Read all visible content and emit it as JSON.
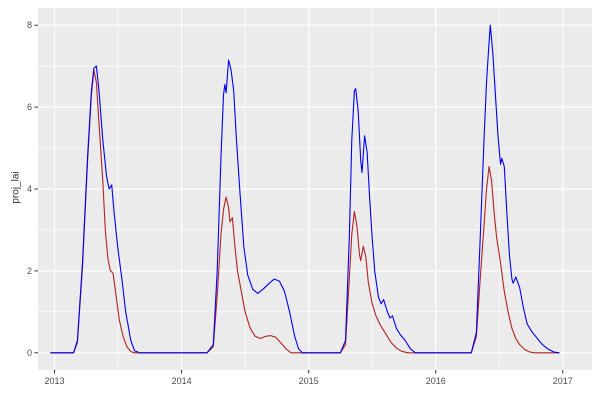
{
  "style": {
    "figure_background": "#FFFFFF",
    "panel_background": "#EBEBEB",
    "grid_color": "#FFFFFF",
    "tick_mark_color": "#333333",
    "tick_label_color": "#4D4D4D"
  },
  "chart_data": {
    "type": "line",
    "title": "",
    "xlabel": "",
    "ylabel": "proj_lai",
    "grid": true,
    "legend": "none",
    "x_ticks": [
      2013,
      2014,
      2015,
      2016,
      2017
    ],
    "x_tick_labels": [
      "2013",
      "2014",
      "2015",
      "2016",
      "2017"
    ],
    "x_minor_ticks": [
      2013.5,
      2014.5,
      2015.5,
      2016.5
    ],
    "y_ticks": [
      0,
      2,
      4,
      6,
      8
    ],
    "y_tick_labels": [
      "0",
      "2",
      "4",
      "6",
      "8"
    ],
    "y_minor_ticks": [
      1,
      3,
      5,
      7
    ],
    "xlim_render": [
      2012.87,
      2017.23
    ],
    "ylim_render": [
      -0.42,
      8.42
    ],
    "ylim": [
      0,
      8
    ],
    "series": [
      {
        "name": "red-line",
        "color": "#B22222",
        "points": [
          [
            2012.97,
            0
          ],
          [
            2013.15,
            0
          ],
          [
            2013.18,
            0.25
          ],
          [
            2013.22,
            2.1
          ],
          [
            2013.26,
            4.7
          ],
          [
            2013.29,
            6.3
          ],
          [
            2013.31,
            6.9
          ],
          [
            2013.33,
            6.6
          ],
          [
            2013.35,
            5.6
          ],
          [
            2013.38,
            4.2
          ],
          [
            2013.4,
            3.0
          ],
          [
            2013.42,
            2.3
          ],
          [
            2013.44,
            2.0
          ],
          [
            2013.46,
            1.95
          ],
          [
            2013.48,
            1.5
          ],
          [
            2013.51,
            0.8
          ],
          [
            2013.54,
            0.4
          ],
          [
            2013.57,
            0.15
          ],
          [
            2013.6,
            0.03
          ],
          [
            2013.63,
            0
          ],
          [
            2014.2,
            0
          ],
          [
            2014.25,
            0.15
          ],
          [
            2014.28,
            1.4
          ],
          [
            2014.31,
            2.9
          ],
          [
            2014.33,
            3.5
          ],
          [
            2014.35,
            3.8
          ],
          [
            2014.37,
            3.55
          ],
          [
            2014.38,
            3.2
          ],
          [
            2014.4,
            3.3
          ],
          [
            2014.42,
            2.6
          ],
          [
            2014.44,
            2.0
          ],
          [
            2014.47,
            1.5
          ],
          [
            2014.5,
            1.0
          ],
          [
            2014.54,
            0.6
          ],
          [
            2014.58,
            0.4
          ],
          [
            2014.62,
            0.35
          ],
          [
            2014.66,
            0.4
          ],
          [
            2014.7,
            0.42
          ],
          [
            2014.74,
            0.38
          ],
          [
            2014.78,
            0.25
          ],
          [
            2014.82,
            0.1
          ],
          [
            2014.86,
            0
          ],
          [
            2015.25,
            0
          ],
          [
            2015.29,
            0.2
          ],
          [
            2015.32,
            1.8
          ],
          [
            2015.34,
            2.9
          ],
          [
            2015.36,
            3.45
          ],
          [
            2015.38,
            3.1
          ],
          [
            2015.4,
            2.4
          ],
          [
            2015.41,
            2.25
          ],
          [
            2015.43,
            2.6
          ],
          [
            2015.45,
            2.35
          ],
          [
            2015.47,
            1.7
          ],
          [
            2015.5,
            1.2
          ],
          [
            2015.53,
            0.9
          ],
          [
            2015.56,
            0.7
          ],
          [
            2015.59,
            0.55
          ],
          [
            2015.62,
            0.4
          ],
          [
            2015.65,
            0.25
          ],
          [
            2015.69,
            0.12
          ],
          [
            2015.73,
            0.04
          ],
          [
            2015.78,
            0
          ],
          [
            2016.28,
            0
          ],
          [
            2016.32,
            0.4
          ],
          [
            2016.35,
            1.8
          ],
          [
            2016.38,
            3.1
          ],
          [
            2016.4,
            4.0
          ],
          [
            2016.42,
            4.55
          ],
          [
            2016.44,
            4.2
          ],
          [
            2016.46,
            3.4
          ],
          [
            2016.48,
            2.8
          ],
          [
            2016.51,
            2.2
          ],
          [
            2016.54,
            1.5
          ],
          [
            2016.57,
            1.0
          ],
          [
            2016.6,
            0.6
          ],
          [
            2016.63,
            0.35
          ],
          [
            2016.66,
            0.2
          ],
          [
            2016.7,
            0.08
          ],
          [
            2016.74,
            0.02
          ],
          [
            2016.78,
            0
          ],
          [
            2016.97,
            0
          ]
        ]
      },
      {
        "name": "blue-line",
        "color": "#0000EE",
        "points": [
          [
            2012.97,
            0
          ],
          [
            2013.15,
            0
          ],
          [
            2013.18,
            0.3
          ],
          [
            2013.22,
            2.2
          ],
          [
            2013.26,
            4.8
          ],
          [
            2013.29,
            6.4
          ],
          [
            2013.31,
            6.95
          ],
          [
            2013.33,
            7.0
          ],
          [
            2013.35,
            6.4
          ],
          [
            2013.38,
            5.2
          ],
          [
            2013.41,
            4.3
          ],
          [
            2013.43,
            4.0
          ],
          [
            2013.45,
            4.1
          ],
          [
            2013.47,
            3.4
          ],
          [
            2013.5,
            2.5
          ],
          [
            2013.53,
            1.8
          ],
          [
            2013.56,
            1.0
          ],
          [
            2013.6,
            0.3
          ],
          [
            2013.63,
            0.05
          ],
          [
            2013.67,
            0
          ],
          [
            2014.2,
            0
          ],
          [
            2014.25,
            0.2
          ],
          [
            2014.28,
            2.0
          ],
          [
            2014.31,
            4.8
          ],
          [
            2014.33,
            6.3
          ],
          [
            2014.34,
            6.55
          ],
          [
            2014.35,
            6.35
          ],
          [
            2014.37,
            7.15
          ],
          [
            2014.39,
            6.9
          ],
          [
            2014.41,
            6.4
          ],
          [
            2014.43,
            5.3
          ],
          [
            2014.46,
            3.9
          ],
          [
            2014.49,
            2.6
          ],
          [
            2014.52,
            1.9
          ],
          [
            2014.56,
            1.55
          ],
          [
            2014.6,
            1.45
          ],
          [
            2014.64,
            1.55
          ],
          [
            2014.69,
            1.7
          ],
          [
            2014.73,
            1.8
          ],
          [
            2014.77,
            1.75
          ],
          [
            2014.81,
            1.5
          ],
          [
            2014.85,
            1.0
          ],
          [
            2014.89,
            0.4
          ],
          [
            2014.92,
            0.1
          ],
          [
            2014.95,
            0
          ],
          [
            2015.25,
            0
          ],
          [
            2015.29,
            0.3
          ],
          [
            2015.32,
            2.8
          ],
          [
            2015.34,
            5.2
          ],
          [
            2015.36,
            6.4
          ],
          [
            2015.37,
            6.45
          ],
          [
            2015.39,
            5.9
          ],
          [
            2015.41,
            4.7
          ],
          [
            2015.42,
            4.4
          ],
          [
            2015.44,
            5.3
          ],
          [
            2015.46,
            4.9
          ],
          [
            2015.48,
            3.8
          ],
          [
            2015.5,
            2.8
          ],
          [
            2015.52,
            2.0
          ],
          [
            2015.55,
            1.35
          ],
          [
            2015.57,
            1.2
          ],
          [
            2015.59,
            1.3
          ],
          [
            2015.62,
            1.0
          ],
          [
            2015.64,
            0.85
          ],
          [
            2015.66,
            0.9
          ],
          [
            2015.69,
            0.6
          ],
          [
            2015.72,
            0.45
          ],
          [
            2015.76,
            0.3
          ],
          [
            2015.8,
            0.1
          ],
          [
            2015.84,
            0
          ],
          [
            2016.28,
            0
          ],
          [
            2016.32,
            0.5
          ],
          [
            2016.35,
            2.8
          ],
          [
            2016.38,
            5.2
          ],
          [
            2016.4,
            6.6
          ],
          [
            2016.42,
            7.6
          ],
          [
            2016.43,
            8.0
          ],
          [
            2016.45,
            7.3
          ],
          [
            2016.47,
            6.3
          ],
          [
            2016.49,
            5.3
          ],
          [
            2016.51,
            4.6
          ],
          [
            2016.52,
            4.75
          ],
          [
            2016.54,
            4.55
          ],
          [
            2016.56,
            3.4
          ],
          [
            2016.58,
            2.4
          ],
          [
            2016.6,
            1.8
          ],
          [
            2016.61,
            1.7
          ],
          [
            2016.63,
            1.85
          ],
          [
            2016.66,
            1.6
          ],
          [
            2016.69,
            1.1
          ],
          [
            2016.72,
            0.7
          ],
          [
            2016.76,
            0.5
          ],
          [
            2016.8,
            0.35
          ],
          [
            2016.84,
            0.2
          ],
          [
            2016.88,
            0.1
          ],
          [
            2016.93,
            0.02
          ],
          [
            2016.97,
            0
          ]
        ]
      }
    ]
  }
}
